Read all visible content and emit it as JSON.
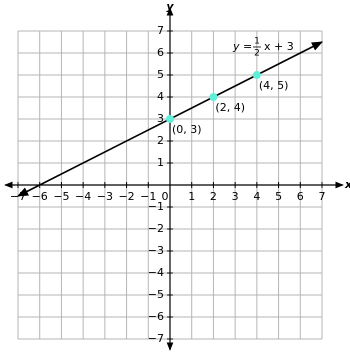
{
  "chart_data": {
    "type": "line",
    "xlabel": "x",
    "ylabel": "y",
    "equation": {
      "lhs": "y",
      "equals": "=",
      "numerator": "1",
      "denominator": "2",
      "rest": "x + 3"
    },
    "xlim": [
      -7,
      7
    ],
    "ylim": [
      -7,
      7
    ],
    "xticks": [
      {
        "value": -7,
        "label": "−7"
      },
      {
        "value": -6,
        "label": "−6"
      },
      {
        "value": -5,
        "label": "−5"
      },
      {
        "value": -4,
        "label": "−4"
      },
      {
        "value": -3,
        "label": "−3"
      },
      {
        "value": -2,
        "label": "−2"
      },
      {
        "value": -1,
        "label": "−1"
      },
      0,
      1,
      2,
      3,
      4,
      5,
      6,
      7
    ],
    "yticks": [
      {
        "value": -7,
        "label": "−7"
      },
      {
        "value": -6,
        "label": "−6"
      },
      {
        "value": -5,
        "label": "−5"
      },
      {
        "value": -4,
        "label": "−4"
      },
      {
        "value": -3,
        "label": "−3"
      },
      {
        "value": -2,
        "label": "−2"
      },
      {
        "value": -1,
        "label": "−1"
      },
      1,
      2,
      3,
      4,
      5,
      6,
      7
    ],
    "grid": true,
    "series": [
      {
        "x": [
          -7,
          7
        ],
        "values": [
          -0.5,
          6.5
        ],
        "color": "#000000"
      },
      {
        "x": [
          0,
          2,
          4
        ],
        "values": [
          3,
          4,
          5
        ],
        "color": "#5ff0d8",
        "value_labels": [
          "(0, 3)",
          "(2, 4)",
          "(4, 5)"
        ]
      }
    ]
  }
}
